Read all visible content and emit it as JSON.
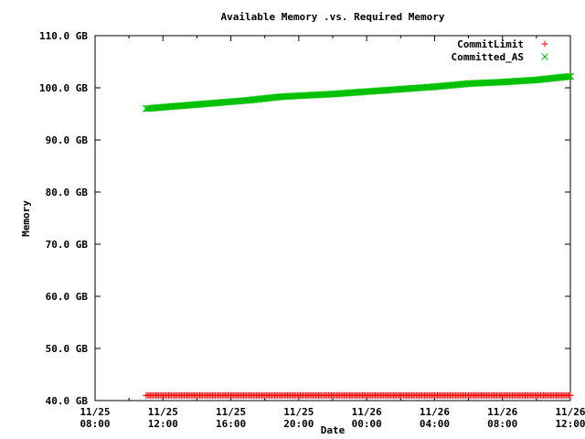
{
  "chart_data": {
    "type": "scatter",
    "title": "Available Memory .vs. Required Memory",
    "xlabel": "Date",
    "ylabel": "Memory",
    "ylim": [
      40,
      110
    ],
    "xlim_hours": [
      0,
      28
    ],
    "y_ticks": [
      "40.0 GB",
      "50.0 GB",
      "60.0 GB",
      "70.0 GB",
      "80.0 GB",
      "90.0 GB",
      "100.0 GB",
      "110.0 GB"
    ],
    "x_ticks": [
      {
        "date": "11/25",
        "time": "08:00"
      },
      {
        "date": "11/25",
        "time": "12:00"
      },
      {
        "date": "11/25",
        "time": "16:00"
      },
      {
        "date": "11/25",
        "time": "20:00"
      },
      {
        "date": "11/26",
        "time": "00:00"
      },
      {
        "date": "11/26",
        "time": "04:00"
      },
      {
        "date": "11/26",
        "time": "08:00"
      },
      {
        "date": "11/26",
        "time": "12:00"
      }
    ],
    "legend_position": "top-right",
    "grid": false,
    "series": [
      {
        "name": "CommitLimit",
        "color": "#ff0000",
        "marker": "+",
        "points": [
          {
            "x": "2012-11-25 11:00",
            "y": 41.0
          },
          {
            "x": "2012-11-26 12:00",
            "y": 41.0
          }
        ]
      },
      {
        "name": "Committed_AS",
        "color": "#00c000",
        "marker": "x",
        "points": [
          {
            "x": "2012-11-25 11:00",
            "y": 96.0
          },
          {
            "x": "2012-11-25 14:00",
            "y": 96.8
          },
          {
            "x": "2012-11-25 17:00",
            "y": 97.6
          },
          {
            "x": "2012-11-25 19:00",
            "y": 98.3
          },
          {
            "x": "2012-11-25 22:00",
            "y": 98.8
          },
          {
            "x": "2012-11-26 01:00",
            "y": 99.5
          },
          {
            "x": "2012-11-26 04:00",
            "y": 100.2
          },
          {
            "x": "2012-11-26 06:00",
            "y": 100.8
          },
          {
            "x": "2012-11-26 08:00",
            "y": 101.1
          },
          {
            "x": "2012-11-26 10:00",
            "y": 101.5
          },
          {
            "x": "2012-11-26 12:00",
            "y": 102.2
          }
        ]
      }
    ]
  }
}
